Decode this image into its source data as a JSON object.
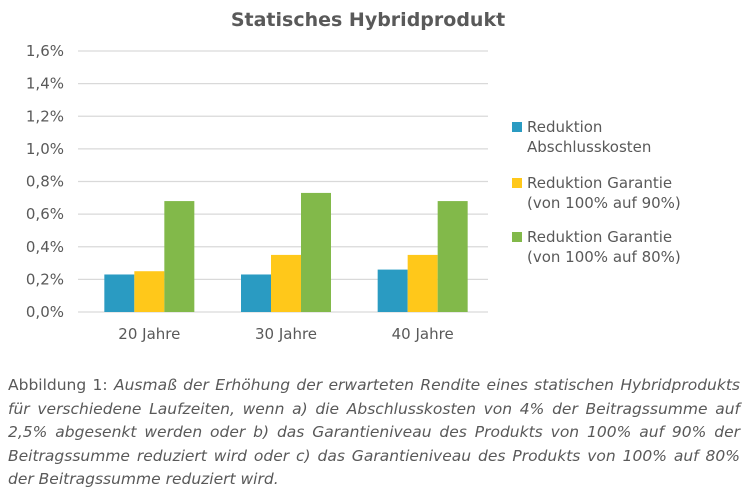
{
  "chart_data": {
    "type": "bar",
    "title": "Statisches Hybridprodukt",
    "categories": [
      "20 Jahre",
      "30 Jahre",
      "40 Jahre"
    ],
    "series": [
      {
        "name": "Reduktion\nAbschlusskosten",
        "color": "#2a9bc2",
        "values": [
          0.23,
          0.23,
          0.26
        ]
      },
      {
        "name": "Reduktion Garantie\n(von 100% auf 90%)",
        "color": "#ffc81a",
        "values": [
          0.25,
          0.35,
          0.35
        ]
      },
      {
        "name": "Reduktion Garantie\n(von 100% auf 80%)",
        "color": "#82b94a",
        "values": [
          0.68,
          0.73,
          0.68
        ]
      }
    ],
    "yticks": [
      "0,0%",
      "0,2%",
      "0,4%",
      "0,6%",
      "0,8%",
      "1,0%",
      "1,2%",
      "1,4%",
      "1,6%"
    ],
    "ylim": [
      0,
      1.6
    ],
    "yunit": "%",
    "grid": true,
    "legend": "right"
  },
  "caption": {
    "label": "Abbildung 1: ",
    "text": "Ausmaß der Erhöhung der erwarteten Rendite eines statischen Hybridprodukts für verschiedene Laufzeiten, wenn a) die Abschlusskosten von 4% der Beitragssumme auf 2,5% abgesenkt werden oder b) das Garantieniveau des Produkts von 100% auf 90% der Beitragssumme reduziert wird oder c) das Garantieniveau des Produkts von 100% auf 80% der Beitragssumme reduziert wird."
  }
}
